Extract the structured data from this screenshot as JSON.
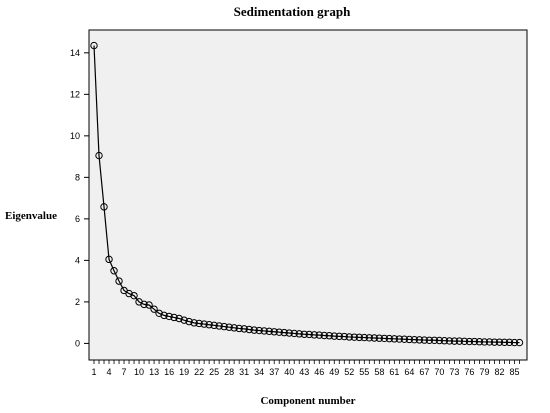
{
  "chart_data": {
    "type": "line",
    "title": "Sedimentation graph",
    "xlabel": "Component number",
    "ylabel": "Eigenvalue",
    "xlim": [
      0,
      87.5
    ],
    "ylim": [
      -0.8,
      15.1
    ],
    "x_ticks": [
      1,
      4,
      7,
      10,
      13,
      16,
      19,
      22,
      25,
      28,
      31,
      34,
      37,
      40,
      43,
      46,
      49,
      52,
      55,
      58,
      61,
      64,
      67,
      70,
      73,
      76,
      79,
      82,
      85
    ],
    "y_ticks": [
      0,
      2,
      4,
      6,
      8,
      10,
      12,
      14
    ],
    "grid": false,
    "marker": "circle",
    "series": [
      {
        "x": [
          1,
          2,
          3,
          4,
          5,
          6,
          7,
          8,
          9,
          10,
          11,
          12,
          13,
          14,
          15,
          16,
          17,
          18,
          19,
          20,
          21,
          22,
          23,
          24,
          25,
          26,
          27,
          28,
          29,
          30,
          31,
          32,
          33,
          34,
          35,
          36,
          37,
          38,
          39,
          40,
          41,
          42,
          43,
          44,
          45,
          46,
          47,
          48,
          49,
          50,
          51,
          52,
          53,
          54,
          55,
          56,
          57,
          58,
          59,
          60,
          61,
          62,
          63,
          64,
          65,
          66,
          67,
          68,
          69,
          70,
          71,
          72,
          73,
          74,
          75,
          76,
          77,
          78,
          79,
          80,
          81,
          82,
          83,
          84,
          85,
          86
        ],
        "values": [
          14.35,
          9.05,
          6.58,
          4.05,
          3.5,
          3.0,
          2.55,
          2.4,
          2.3,
          2.0,
          1.88,
          1.85,
          1.65,
          1.45,
          1.35,
          1.3,
          1.25,
          1.2,
          1.12,
          1.05,
          0.99,
          0.96,
          0.93,
          0.9,
          0.87,
          0.84,
          0.81,
          0.78,
          0.75,
          0.72,
          0.7,
          0.67,
          0.64,
          0.62,
          0.6,
          0.58,
          0.56,
          0.54,
          0.52,
          0.5,
          0.48,
          0.46,
          0.44,
          0.43,
          0.41,
          0.4,
          0.38,
          0.37,
          0.35,
          0.34,
          0.33,
          0.31,
          0.3,
          0.29,
          0.28,
          0.27,
          0.26,
          0.25,
          0.24,
          0.23,
          0.22,
          0.21,
          0.2,
          0.19,
          0.18,
          0.17,
          0.16,
          0.15,
          0.15,
          0.14,
          0.13,
          0.12,
          0.11,
          0.11,
          0.1,
          0.09,
          0.09,
          0.08,
          0.07,
          0.07,
          0.06,
          0.06,
          0.05,
          0.05,
          0.04,
          0.04
        ]
      }
    ]
  },
  "colors": {
    "plot_background": "#f0f0f0",
    "line": "#000000",
    "marker_stroke": "#000000"
  }
}
